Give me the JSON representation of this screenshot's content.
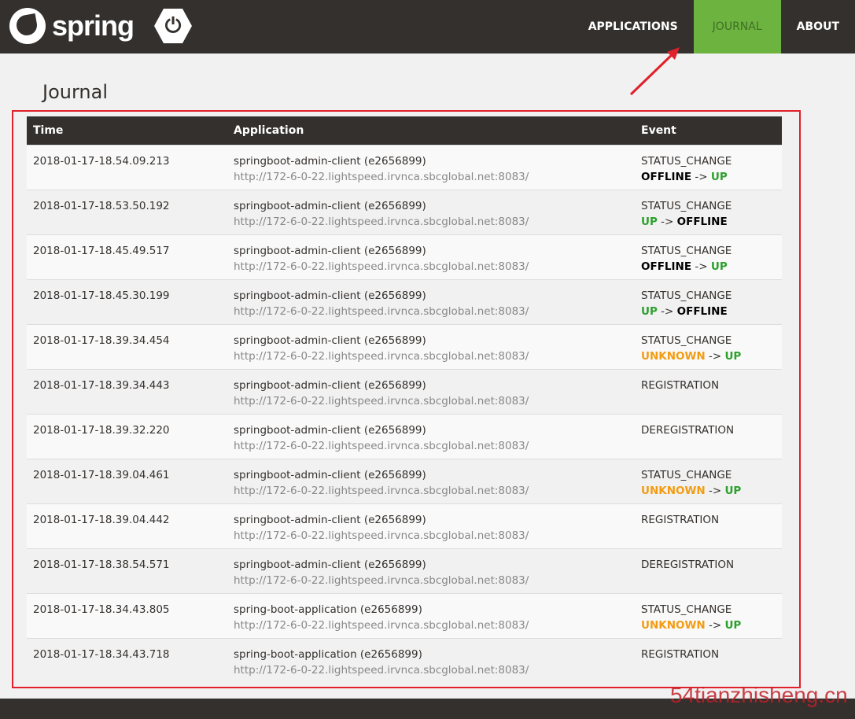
{
  "nav": {
    "brand": "spring",
    "items": [
      {
        "label": "APPLICATIONS",
        "active": false
      },
      {
        "label": "JOURNAL",
        "active": true
      },
      {
        "label": "ABOUT",
        "active": false
      }
    ],
    "accent": "#6db33f"
  },
  "page": {
    "title": "Journal"
  },
  "table": {
    "headers": [
      "Time",
      "Application",
      "Event"
    ],
    "rows": [
      {
        "time": "2018-01-17-18.54.09.213",
        "app": "springboot-admin-client (e2656899)",
        "url": "http://172-6-0-22.lightspeed.irvnca.sbcglobal.net:8083/",
        "event": "STATUS_CHANGE",
        "from": "OFFLINE",
        "to": "UP"
      },
      {
        "time": "2018-01-17-18.53.50.192",
        "app": "springboot-admin-client (e2656899)",
        "url": "http://172-6-0-22.lightspeed.irvnca.sbcglobal.net:8083/",
        "event": "STATUS_CHANGE",
        "from": "UP",
        "to": "OFFLINE"
      },
      {
        "time": "2018-01-17-18.45.49.517",
        "app": "springboot-admin-client (e2656899)",
        "url": "http://172-6-0-22.lightspeed.irvnca.sbcglobal.net:8083/",
        "event": "STATUS_CHANGE",
        "from": "OFFLINE",
        "to": "UP"
      },
      {
        "time": "2018-01-17-18.45.30.199",
        "app": "springboot-admin-client (e2656899)",
        "url": "http://172-6-0-22.lightspeed.irvnca.sbcglobal.net:8083/",
        "event": "STATUS_CHANGE",
        "from": "UP",
        "to": "OFFLINE"
      },
      {
        "time": "2018-01-17-18.39.34.454",
        "app": "springboot-admin-client (e2656899)",
        "url": "http://172-6-0-22.lightspeed.irvnca.sbcglobal.net:8083/",
        "event": "STATUS_CHANGE",
        "from": "UNKNOWN",
        "to": "UP"
      },
      {
        "time": "2018-01-17-18.39.34.443",
        "app": "springboot-admin-client (e2656899)",
        "url": "http://172-6-0-22.lightspeed.irvnca.sbcglobal.net:8083/",
        "event": "REGISTRATION"
      },
      {
        "time": "2018-01-17-18.39.32.220",
        "app": "springboot-admin-client (e2656899)",
        "url": "http://172-6-0-22.lightspeed.irvnca.sbcglobal.net:8083/",
        "event": "DEREGISTRATION"
      },
      {
        "time": "2018-01-17-18.39.04.461",
        "app": "springboot-admin-client (e2656899)",
        "url": "http://172-6-0-22.lightspeed.irvnca.sbcglobal.net:8083/",
        "event": "STATUS_CHANGE",
        "from": "UNKNOWN",
        "to": "UP"
      },
      {
        "time": "2018-01-17-18.39.04.442",
        "app": "springboot-admin-client (e2656899)",
        "url": "http://172-6-0-22.lightspeed.irvnca.sbcglobal.net:8083/",
        "event": "REGISTRATION"
      },
      {
        "time": "2018-01-17-18.38.54.571",
        "app": "springboot-admin-client (e2656899)",
        "url": "http://172-6-0-22.lightspeed.irvnca.sbcglobal.net:8083/",
        "event": "DEREGISTRATION"
      },
      {
        "time": "2018-01-17-18.34.43.805",
        "app": "spring-boot-application (e2656899)",
        "url": "http://172-6-0-22.lightspeed.irvnca.sbcglobal.net:8083/",
        "event": "STATUS_CHANGE",
        "from": "UNKNOWN",
        "to": "UP"
      },
      {
        "time": "2018-01-17-18.34.43.718",
        "app": "spring-boot-application (e2656899)",
        "url": "http://172-6-0-22.lightspeed.irvnca.sbcglobal.net:8083/",
        "event": "REGISTRATION"
      }
    ]
  },
  "status_colors": {
    "UP": "#2ca02c",
    "UNKNOWN": "#f39c12",
    "OFFLINE": "#000000"
  },
  "arrow_sep": "->",
  "watermark": "54tianzhisheng.cn"
}
